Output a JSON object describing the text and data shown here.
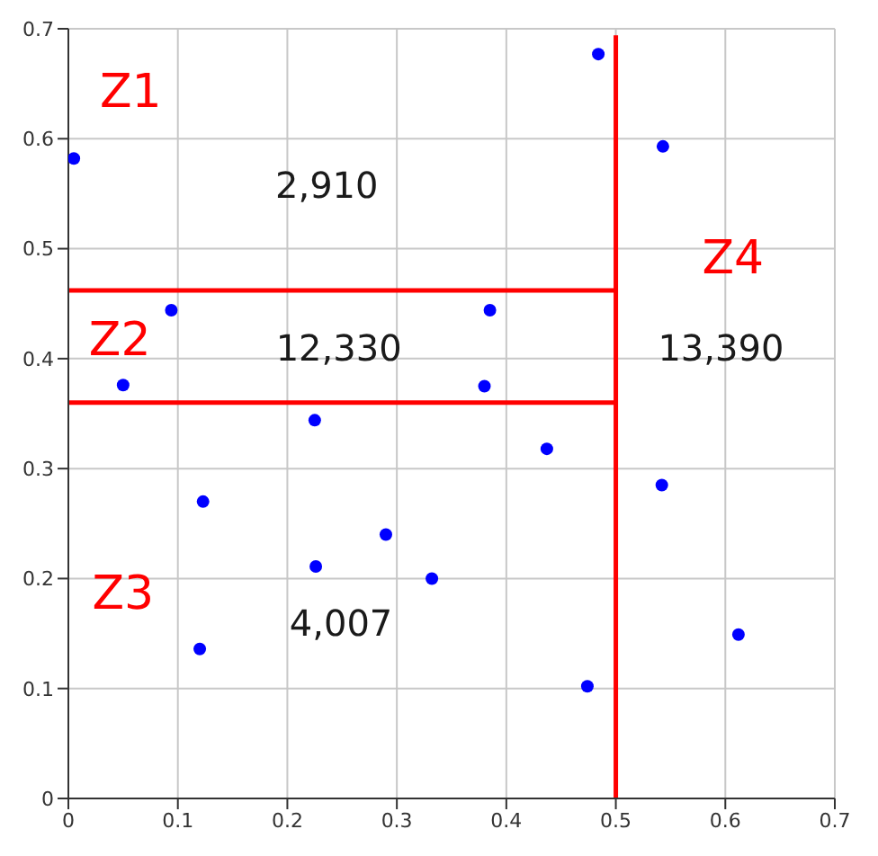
{
  "chart_data": {
    "type": "scatter",
    "xlim": [
      0,
      0.7
    ],
    "ylim": [
      0,
      0.7
    ],
    "xticks": [
      0,
      0.1,
      0.2,
      0.3,
      0.4,
      0.5,
      0.6,
      0.7
    ],
    "yticks": [
      0,
      0.1,
      0.2,
      0.3,
      0.4,
      0.5,
      0.6,
      0.7
    ],
    "grid": true,
    "series": [
      {
        "color": "#0000ff",
        "marker": "circle",
        "x": [
          0.005,
          0.094,
          0.05,
          0.225,
          0.484,
          0.543,
          0.385,
          0.38,
          0.123,
          0.12,
          0.226,
          0.29,
          0.332,
          0.437,
          0.542,
          0.612,
          0.474
        ],
        "values": [
          0.582,
          0.444,
          0.376,
          0.344,
          0.677,
          0.593,
          0.444,
          0.375,
          0.27,
          0.136,
          0.211,
          0.24,
          0.2,
          0.318,
          0.285,
          0.149,
          0.102
        ]
      },
      {
        "type": "line",
        "color": "#ff0000",
        "marker": "none",
        "x": [
          0,
          0.5
        ],
        "values": [
          0.462,
          0.462
        ]
      },
      {
        "type": "line",
        "color": "#ff0000",
        "marker": "none",
        "x": [
          0,
          0.5
        ],
        "values": [
          0.36,
          0.36
        ]
      },
      {
        "type": "line",
        "color": "#ff0000",
        "marker": "none",
        "x": [
          0.5,
          0.5
        ],
        "values": [
          0,
          0.694
        ]
      }
    ],
    "annotations": [
      "Z1",
      "2,910",
      "Z2",
      "12,330",
      "Z3",
      "4,007",
      "Z4",
      "13,390"
    ]
  }
}
